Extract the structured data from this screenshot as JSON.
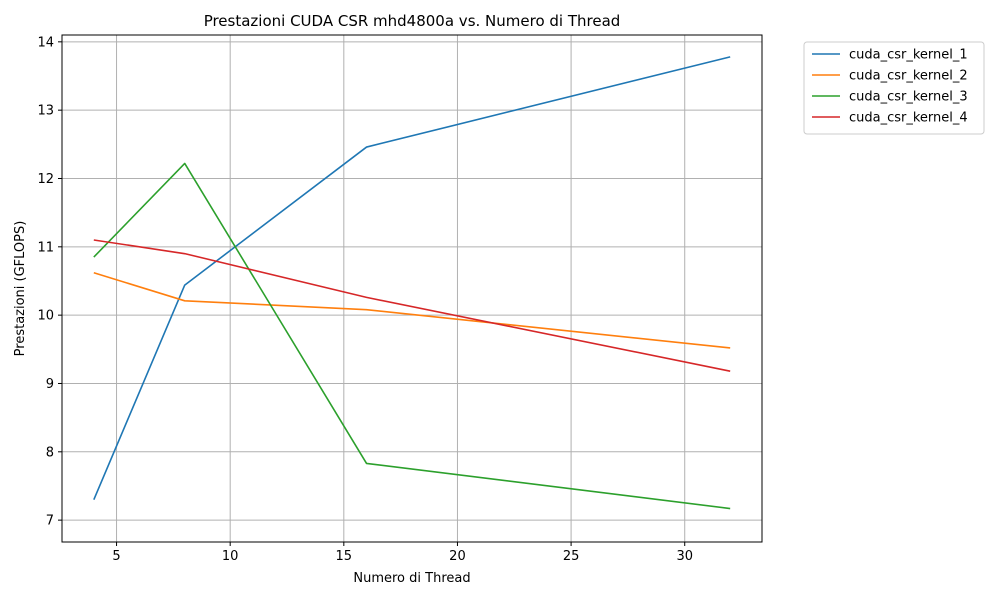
{
  "chart_data": {
    "type": "line",
    "title": "Prestazioni CUDA CSR mhd4800a vs. Numero di Thread",
    "xlabel": "Numero di Thread",
    "ylabel": "Prestazioni (GFLOPS)",
    "x": [
      4,
      8,
      16,
      32
    ],
    "xlim": [
      2.6,
      33.4
    ],
    "ylim": [
      6.68,
      14.1
    ],
    "xticks": [
      5,
      10,
      15,
      20,
      25,
      30
    ],
    "yticks": [
      7,
      8,
      9,
      10,
      11,
      12,
      13,
      14
    ],
    "grid": true,
    "legend_position": "outside-top-right",
    "series": [
      {
        "name": "cuda_csr_kernel_1",
        "color": "#1f77b4",
        "values": [
          7.3,
          10.44,
          12.46,
          13.78
        ]
      },
      {
        "name": "cuda_csr_kernel_2",
        "color": "#ff7f0e",
        "values": [
          10.62,
          10.21,
          10.08,
          9.52
        ]
      },
      {
        "name": "cuda_csr_kernel_3",
        "color": "#2ca02c",
        "values": [
          10.85,
          12.22,
          7.83,
          7.17
        ]
      },
      {
        "name": "cuda_csr_kernel_4",
        "color": "#d62728",
        "values": [
          11.1,
          10.9,
          10.26,
          9.18
        ]
      }
    ]
  }
}
